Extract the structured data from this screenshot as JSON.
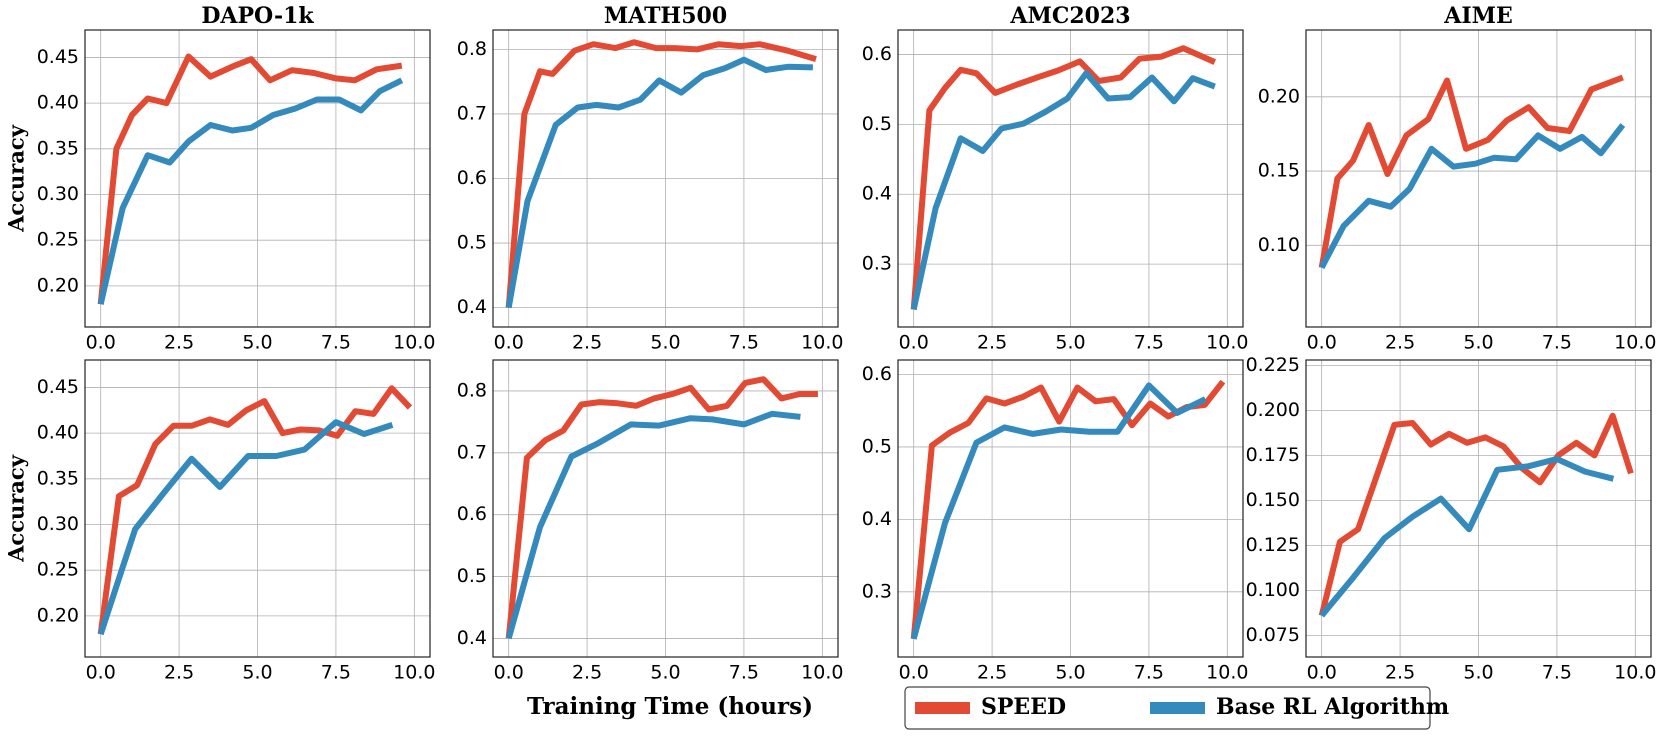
{
  "chart_data": [
    {
      "type": "line",
      "title": "DAPO-1k",
      "ylabel": "Accuracy",
      "xlim": [
        -0.5,
        10.5
      ],
      "ylim": [
        0.155,
        0.48
      ],
      "xticks": [
        {
          "value": 0,
          "label": "0.0"
        },
        2.5,
        {
          "value": 5,
          "label": "5.0"
        },
        7.5,
        {
          "value": 10,
          "label": "10.0"
        }
      ],
      "yticks": [
        {
          "value": 0.2,
          "label": "0.20"
        },
        0.25,
        {
          "value": 0.3,
          "label": "0.30"
        },
        0.35,
        {
          "value": 0.4,
          "label": "0.40"
        },
        0.45
      ],
      "grid": true,
      "series": [
        {
          "x": [
            0,
            0.5,
            1,
            1.5,
            2.1,
            2.8,
            3.5,
            4.2,
            4.8,
            5.4,
            6.1,
            6.8,
            7.5,
            8.1,
            8.8,
            9.6
          ],
          "values": [
            0.18,
            0.35,
            0.387,
            0.405,
            0.4,
            0.451,
            0.429,
            0.44,
            0.448,
            0.425,
            0.436,
            0.433,
            0.427,
            0.425,
            0.437,
            0.441
          ]
        },
        {
          "x": [
            0,
            0.7,
            1.5,
            2.2,
            2.8,
            3.5,
            4.2,
            4.8,
            5.5,
            6.2,
            6.9,
            7.6,
            8.3,
            8.9,
            9.6
          ],
          "values": [
            0.18,
            0.285,
            0.343,
            0.335,
            0.358,
            0.376,
            0.37,
            0.373,
            0.387,
            0.394,
            0.404,
            0.404,
            0.392,
            0.413,
            0.425
          ]
        }
      ]
    },
    {
      "type": "line",
      "title": "MATH500",
      "xlim": [
        -0.5,
        10.5
      ],
      "ylim": [
        0.37,
        0.83
      ],
      "xticks": [
        {
          "value": 0,
          "label": "0.0"
        },
        2.5,
        {
          "value": 5,
          "label": "5.0"
        },
        7.5,
        {
          "value": 10,
          "label": "10.0"
        }
      ],
      "yticks": [
        0.4,
        0.5,
        0.6,
        0.7,
        0.8
      ],
      "grid": true,
      "series": [
        {
          "x": [
            0,
            0.5,
            1,
            1.4,
            2.1,
            2.7,
            3.4,
            4.0,
            4.7,
            5.3,
            6.0,
            6.7,
            7.4,
            8.0,
            8.9,
            9.8
          ],
          "values": [
            0.4,
            0.7,
            0.766,
            0.762,
            0.798,
            0.808,
            0.802,
            0.811,
            0.802,
            0.802,
            0.8,
            0.808,
            0.805,
            0.808,
            0.798,
            0.785
          ]
        },
        {
          "x": [
            0,
            0.6,
            1.5,
            2.2,
            2.8,
            3.5,
            4.2,
            4.8,
            5.5,
            6.2,
            6.9,
            7.5,
            8.2,
            8.9,
            9.7
          ],
          "values": [
            0.4,
            0.565,
            0.683,
            0.71,
            0.714,
            0.71,
            0.722,
            0.752,
            0.733,
            0.76,
            0.771,
            0.784,
            0.768,
            0.773,
            0.772
          ]
        }
      ]
    },
    {
      "type": "line",
      "title": "AMC2023",
      "xlim": [
        -0.5,
        10.5
      ],
      "ylim": [
        0.21,
        0.635
      ],
      "xticks": [
        {
          "value": 0,
          "label": "0.0"
        },
        2.5,
        {
          "value": 5,
          "label": "5.0"
        },
        7.5,
        {
          "value": 10,
          "label": "10.0"
        }
      ],
      "yticks": [
        0.3,
        0.4,
        0.5,
        0.6
      ],
      "grid": true,
      "series": [
        {
          "x": [
            0,
            0.5,
            1,
            1.5,
            2,
            2.6,
            3.3,
            4,
            4.6,
            5.3,
            5.9,
            6.6,
            7.2,
            7.9,
            8.6,
            9.6
          ],
          "values": [
            0.235,
            0.52,
            0.552,
            0.578,
            0.573,
            0.545,
            0.557,
            0.568,
            0.577,
            0.59,
            0.562,
            0.567,
            0.594,
            0.597,
            0.609,
            0.589
          ]
        },
        {
          "x": [
            0,
            0.7,
            1.5,
            2.2,
            2.8,
            3.5,
            4.2,
            4.9,
            5.5,
            6.2,
            6.9,
            7.6,
            8.3,
            8.9,
            9.6
          ],
          "values": [
            0.235,
            0.38,
            0.48,
            0.462,
            0.494,
            0.501,
            0.518,
            0.537,
            0.573,
            0.537,
            0.539,
            0.567,
            0.533,
            0.566,
            0.554
          ]
        }
      ]
    },
    {
      "type": "line",
      "title": "AIME",
      "xlim": [
        -0.5,
        10.5
      ],
      "ylim": [
        0.045,
        0.245
      ],
      "xticks": [
        {
          "value": 0,
          "label": "0.0"
        },
        2.5,
        {
          "value": 5,
          "label": "5.0"
        },
        7.5,
        {
          "value": 10,
          "label": "10.0"
        }
      ],
      "yticks": [
        {
          "value": 0.1,
          "label": "0.10"
        },
        0.15,
        {
          "value": 0.2,
          "label": "0.20"
        }
      ],
      "grid": true,
      "series": [
        {
          "x": [
            0,
            0.5,
            1,
            1.5,
            2.1,
            2.7,
            3.4,
            4,
            4.6,
            5.3,
            5.9,
            6.6,
            7.2,
            7.9,
            8.6,
            9.6
          ],
          "values": [
            0.085,
            0.145,
            0.157,
            0.181,
            0.148,
            0.174,
            0.185,
            0.211,
            0.165,
            0.171,
            0.184,
            0.193,
            0.179,
            0.177,
            0.205,
            0.213
          ]
        },
        {
          "x": [
            0,
            0.7,
            1.5,
            2.2,
            2.8,
            3.5,
            4.2,
            4.9,
            5.5,
            6.2,
            6.9,
            7.6,
            8.3,
            8.9,
            9.6
          ],
          "values": [
            0.085,
            0.113,
            0.13,
            0.126,
            0.138,
            0.165,
            0.153,
            0.155,
            0.159,
            0.158,
            0.174,
            0.165,
            0.173,
            0.162,
            0.181
          ]
        }
      ]
    },
    {
      "type": "line",
      "ylabel": "Accuracy",
      "xlim": [
        -0.5,
        10.5
      ],
      "ylim": [
        0.155,
        0.48
      ],
      "xticks": [
        {
          "value": 0,
          "label": "0.0"
        },
        2.5,
        {
          "value": 5,
          "label": "5.0"
        },
        7.5,
        {
          "value": 10,
          "label": "10.0"
        }
      ],
      "yticks": [
        {
          "value": 0.2,
          "label": "0.20"
        },
        0.25,
        {
          "value": 0.3,
          "label": "0.30"
        },
        0.35,
        {
          "value": 0.4,
          "label": "0.40"
        },
        0.45
      ],
      "grid": true,
      "series": [
        {
          "x": [
            0,
            0.58,
            1.16,
            1.74,
            2.32,
            2.9,
            3.48,
            4.06,
            4.64,
            5.22,
            5.8,
            6.38,
            6.96,
            7.54,
            8.12,
            8.7,
            9.28,
            9.86
          ],
          "values": [
            0.18,
            0.331,
            0.343,
            0.388,
            0.408,
            0.408,
            0.415,
            0.409,
            0.425,
            0.435,
            0.4,
            0.404,
            0.403,
            0.397,
            0.424,
            0.421,
            0.449,
            0.428
          ]
        },
        {
          "x": [
            0,
            1.1,
            2,
            2.9,
            3.8,
            4.7,
            5.6,
            6.5,
            7.5,
            8.4,
            9.3
          ],
          "values": [
            0.18,
            0.295,
            0.334,
            0.372,
            0.341,
            0.375,
            0.375,
            0.382,
            0.412,
            0.399,
            0.409
          ]
        }
      ]
    },
    {
      "type": "line",
      "xlim": [
        -0.5,
        10.5
      ],
      "ylim": [
        0.37,
        0.85
      ],
      "xticks": [
        {
          "value": 0,
          "label": "0.0"
        },
        2.5,
        {
          "value": 5,
          "label": "5.0"
        },
        7.5,
        {
          "value": 10,
          "label": "10.0"
        }
      ],
      "yticks": [
        0.4,
        0.5,
        0.6,
        0.7,
        0.8
      ],
      "grid": true,
      "series": [
        {
          "x": [
            0,
            0.58,
            1.16,
            1.74,
            2.32,
            2.9,
            3.48,
            4.06,
            4.64,
            5.22,
            5.8,
            6.38,
            6.96,
            7.54,
            8.12,
            8.7,
            9.28,
            9.86
          ],
          "values": [
            0.4,
            0.692,
            0.72,
            0.736,
            0.778,
            0.782,
            0.78,
            0.776,
            0.788,
            0.795,
            0.805,
            0.77,
            0.776,
            0.813,
            0.819,
            0.788,
            0.795,
            0.795
          ]
        },
        {
          "x": [
            0,
            1,
            2,
            2.8,
            3.9,
            4.8,
            5.8,
            6.5,
            7.5,
            8.4,
            9.3
          ],
          "values": [
            0.4,
            0.58,
            0.694,
            0.714,
            0.746,
            0.744,
            0.756,
            0.754,
            0.746,
            0.763,
            0.758
          ]
        }
      ]
    },
    {
      "type": "line",
      "xlim": [
        -0.5,
        10.5
      ],
      "ylim": [
        0.21,
        0.62
      ],
      "xticks": [
        {
          "value": 0,
          "label": "0.0"
        },
        2.5,
        {
          "value": 5,
          "label": "5.0"
        },
        7.5,
        {
          "value": 10,
          "label": "10.0"
        }
      ],
      "yticks": [
        0.3,
        0.4,
        0.5,
        0.6
      ],
      "grid": true,
      "series": [
        {
          "x": [
            0,
            0.58,
            1.16,
            1.74,
            2.32,
            2.9,
            3.48,
            4.06,
            4.64,
            5.22,
            5.8,
            6.38,
            6.96,
            7.54,
            8.12,
            8.7,
            9.28,
            9.86
          ],
          "values": [
            0.235,
            0.502,
            0.52,
            0.533,
            0.567,
            0.56,
            0.569,
            0.582,
            0.535,
            0.582,
            0.563,
            0.566,
            0.53,
            0.56,
            0.542,
            0.555,
            0.558,
            0.59
          ]
        },
        {
          "x": [
            0,
            1,
            2,
            2.9,
            3.8,
            4.7,
            5.6,
            6.5,
            7.5,
            8.4,
            9.3
          ],
          "values": [
            0.235,
            0.395,
            0.506,
            0.527,
            0.518,
            0.524,
            0.521,
            0.521,
            0.585,
            0.547,
            0.566
          ]
        }
      ]
    },
    {
      "type": "line",
      "xlim": [
        -0.5,
        10.5
      ],
      "ylim": [
        0.063,
        0.228
      ],
      "xticks": [
        {
          "value": 0,
          "label": "0.0"
        },
        2.5,
        {
          "value": 5,
          "label": "5.0"
        },
        7.5,
        {
          "value": 10,
          "label": "10.0"
        }
      ],
      "yticks": [
        0.075,
        {
          "value": 0.1,
          "label": "0.100"
        },
        0.125,
        {
          "value": 0.15,
          "label": "0.150"
        },
        0.175,
        {
          "value": 0.2,
          "label": "0.200"
        },
        0.225
      ],
      "grid": true,
      "series": [
        {
          "x": [
            0,
            0.58,
            1.16,
            1.74,
            2.32,
            2.9,
            3.48,
            4.06,
            4.64,
            5.22,
            5.8,
            6.38,
            6.96,
            7.54,
            8.12,
            8.7,
            9.28,
            9.86
          ],
          "values": [
            0.086,
            0.127,
            0.134,
            0.163,
            0.192,
            0.193,
            0.181,
            0.187,
            0.182,
            0.185,
            0.18,
            0.168,
            0.16,
            0.175,
            0.182,
            0.175,
            0.197,
            0.165
          ]
        },
        {
          "x": [
            0,
            1,
            2,
            2.9,
            3.8,
            4.7,
            5.6,
            6.6,
            7.5,
            8.4,
            9.3
          ],
          "values": [
            0.086,
            0.107,
            0.129,
            0.141,
            0.151,
            0.134,
            0.167,
            0.169,
            0.173,
            0.166,
            0.162
          ]
        }
      ]
    }
  ],
  "xlabel": "Training Time (hours)",
  "legend": [
    {
      "name": "SPEED",
      "color": "#e24a33"
    },
    {
      "name": "Base RL Algorithm",
      "color": "#348abd"
    }
  ]
}
